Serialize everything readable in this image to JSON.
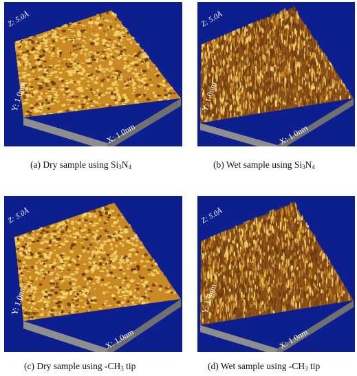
{
  "colors": {
    "background": "#0d1f8f",
    "base_side": "#8e8e8e",
    "base_edge": "#6e6e6e",
    "surface_dark": "#6b3a12",
    "surface_mid": "#c98a24",
    "surface_light": "#f3d36a",
    "label_text": "#ffffff"
  },
  "panels": [
    {
      "id": "a",
      "z_label": "Z: 5.0Å",
      "y_label": "Y: 1.0nm",
      "x_label": "X: 1.0nm",
      "caption_pre": "(a) Dry sample using Si",
      "caption_sub1": "3",
      "caption_mid": "N",
      "caption_sub2": "4",
      "caption_post": ""
    },
    {
      "id": "b",
      "z_label": "Z: 5.0Å",
      "y_label": "Y: 1.0nm",
      "x_label": "X: 1.0nm",
      "caption_pre": "(b) Wet sample using Si",
      "caption_sub1": "3",
      "caption_mid": "N",
      "caption_sub2": "4",
      "caption_post": ""
    },
    {
      "id": "c",
      "z_label": "Z: 5.0Å",
      "y_label": "Y: 1.0nm",
      "x_label": "X: 1.0nm",
      "caption_pre": "(c) Dry sample using -CH",
      "caption_sub1": "3",
      "caption_mid": " tip",
      "caption_sub2": "",
      "caption_post": ""
    },
    {
      "id": "d",
      "z_label": "Z: 5.0Å",
      "y_label": "Y: 1.0nm",
      "x_label": "X: 1.0nm",
      "caption_pre": "(d) Wet sample using -CH",
      "caption_sub1": "3",
      "caption_mid": " tip",
      "caption_sub2": "",
      "caption_post": ""
    }
  ]
}
